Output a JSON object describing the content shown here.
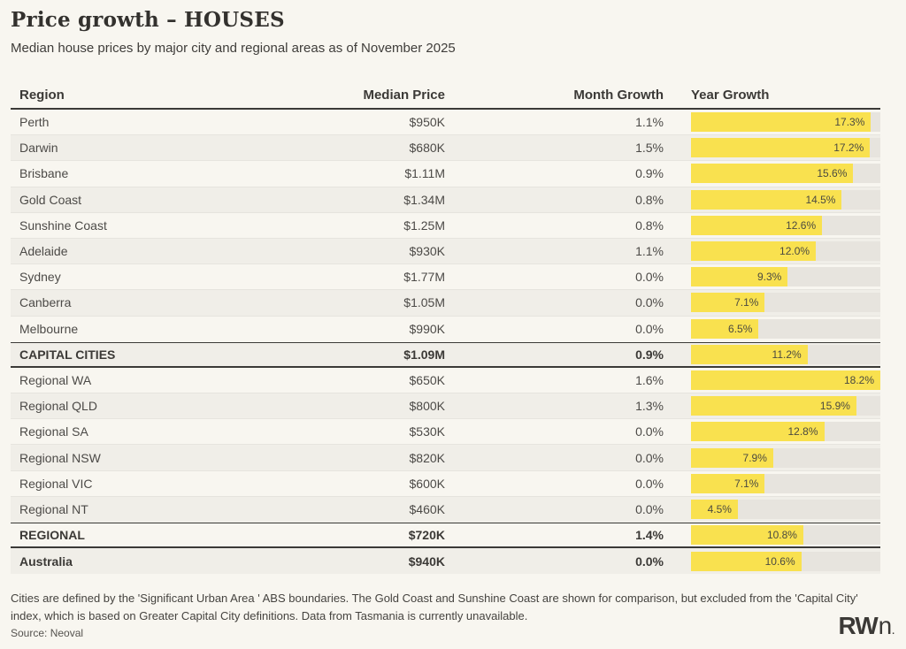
{
  "page": {
    "title": "Price growth – HOUSES",
    "subtitle": "Median house prices by major city and regional areas as of November 2025"
  },
  "chart_data": {
    "type": "table",
    "title": "Price growth – HOUSES",
    "subtitle": "Median house prices by major city and regional areas as of November 2025",
    "columns": [
      "Region",
      "Median Price",
      "Month Growth",
      "Year Growth"
    ],
    "bar_column": "Year Growth",
    "bar_scale_max": 18.2,
    "bar_color": "#F9E14F",
    "bar_track_color": "#E7E4DE",
    "rows": [
      {
        "region": "Perth",
        "median_price": "$950K",
        "month_growth": "1.1%",
        "year_growth": 17.3,
        "bold": false,
        "divider": false
      },
      {
        "region": "Darwin",
        "median_price": "$680K",
        "month_growth": "1.5%",
        "year_growth": 17.2,
        "bold": false,
        "divider": false
      },
      {
        "region": "Brisbane",
        "median_price": "$1.11M",
        "month_growth": "0.9%",
        "year_growth": 15.6,
        "bold": false,
        "divider": false
      },
      {
        "region": "Gold Coast",
        "median_price": "$1.34M",
        "month_growth": "0.8%",
        "year_growth": 14.5,
        "bold": false,
        "divider": false
      },
      {
        "region": "Sunshine Coast",
        "median_price": "$1.25M",
        "month_growth": "0.8%",
        "year_growth": 12.6,
        "bold": false,
        "divider": false
      },
      {
        "region": "Adelaide",
        "median_price": "$930K",
        "month_growth": "1.1%",
        "year_growth": 12.0,
        "bold": false,
        "divider": false
      },
      {
        "region": "Sydney",
        "median_price": "$1.77M",
        "month_growth": "0.0%",
        "year_growth": 9.3,
        "bold": false,
        "divider": false
      },
      {
        "region": "Canberra",
        "median_price": "$1.05M",
        "month_growth": "0.0%",
        "year_growth": 7.1,
        "bold": false,
        "divider": false
      },
      {
        "region": "Melbourne",
        "median_price": "$990K",
        "month_growth": "0.0%",
        "year_growth": 6.5,
        "bold": false,
        "divider": false
      },
      {
        "region": "CAPITAL CITIES",
        "median_price": "$1.09M",
        "month_growth": "0.9%",
        "year_growth": 11.2,
        "bold": true,
        "divider": true
      },
      {
        "region": "Regional WA",
        "median_price": "$650K",
        "month_growth": "1.6%",
        "year_growth": 18.2,
        "bold": false,
        "divider": false
      },
      {
        "region": "Regional QLD",
        "median_price": "$800K",
        "month_growth": "1.3%",
        "year_growth": 15.9,
        "bold": false,
        "divider": false
      },
      {
        "region": "Regional SA",
        "median_price": "$530K",
        "month_growth": "0.0%",
        "year_growth": 12.8,
        "bold": false,
        "divider": false
      },
      {
        "region": "Regional NSW",
        "median_price": "$820K",
        "month_growth": "0.0%",
        "year_growth": 7.9,
        "bold": false,
        "divider": false
      },
      {
        "region": "Regional VIC",
        "median_price": "$600K",
        "month_growth": "0.0%",
        "year_growth": 7.1,
        "bold": false,
        "divider": false
      },
      {
        "region": "Regional NT",
        "median_price": "$460K",
        "month_growth": "0.0%",
        "year_growth": 4.5,
        "bold": false,
        "divider": false
      },
      {
        "region": "REGIONAL",
        "median_price": "$720K",
        "month_growth": "1.4%",
        "year_growth": 10.8,
        "bold": true,
        "divider": true
      },
      {
        "region": "Australia",
        "median_price": "$940K",
        "month_growth": "0.0%",
        "year_growth": 10.6,
        "bold": true,
        "divider": false
      }
    ]
  },
  "footer": {
    "footnote": "Cities are defined by the 'Significant Urban Area ' ABS boundaries. The Gold Coast and Sunshine Coast are shown for comparison, but excluded from the 'Capital City' index, which is based on Greater Capital City definitions. Data from Tasmania is currently unavailable.",
    "source": "Source: Neoval",
    "logo": {
      "bold": "RW",
      "light": "n",
      "mark": "."
    }
  }
}
